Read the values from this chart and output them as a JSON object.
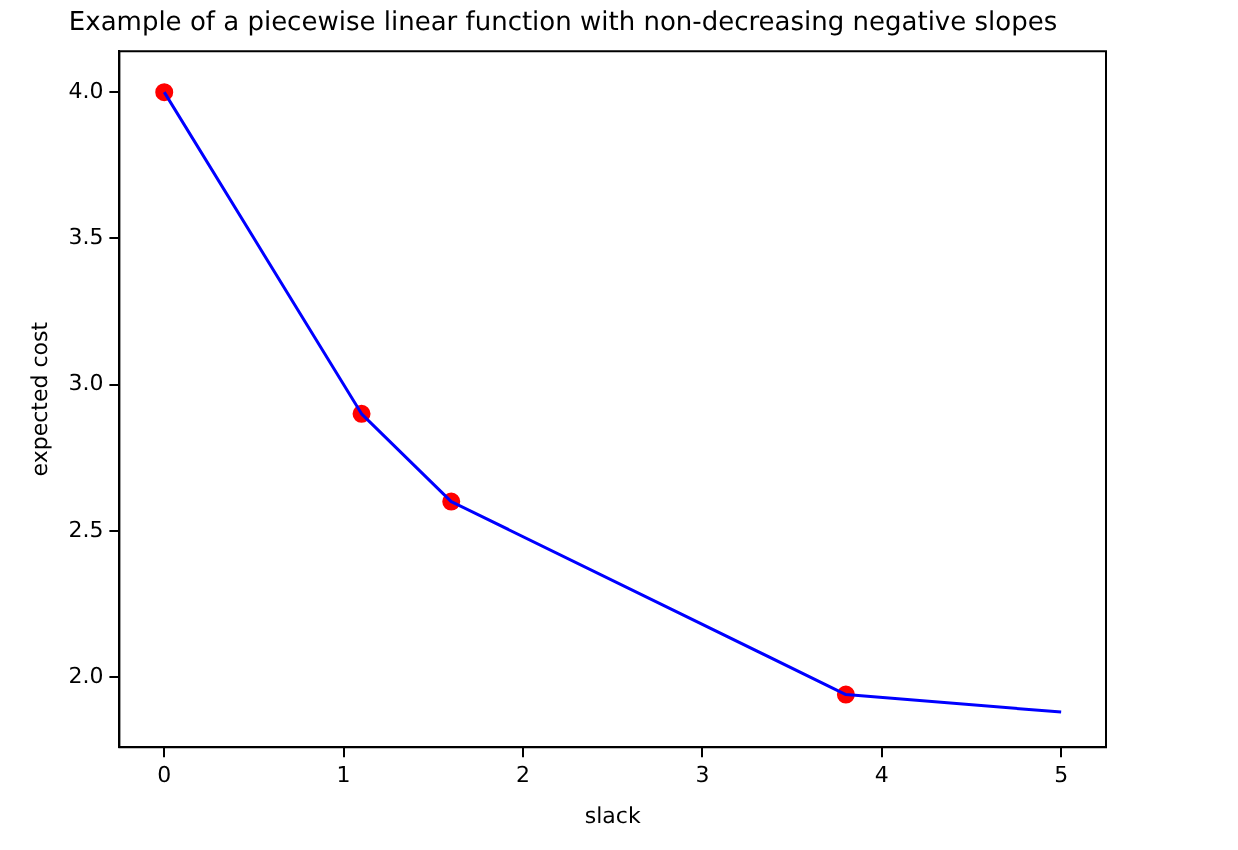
{
  "chart_data": {
    "type": "line",
    "title": "Example of a piecewise linear function with non-decreasing negative slopes",
    "xlabel": "slack",
    "ylabel": "expected cost",
    "series": [
      {
        "type": "line",
        "color": "#0000ff",
        "marker": "none",
        "x": [
          0,
          1.1,
          1.6,
          3.8,
          5
        ],
        "values": [
          4.0,
          2.9,
          2.6,
          1.94,
          1.88
        ]
      },
      {
        "type": "scatter",
        "color": "#ff0000",
        "marker": "circle",
        "x": [
          0,
          1.1,
          1.6,
          3.8
        ],
        "values": [
          4.0,
          2.9,
          2.6,
          1.94
        ]
      }
    ],
    "xlim": [
      -0.25,
      5.25
    ],
    "xticks": [
      0,
      1,
      2,
      3,
      4,
      5
    ],
    "ylim": [
      1.76,
      4.14
    ],
    "yticks": [
      {
        "value": 2,
        "label": "2.0"
      },
      {
        "value": 2.5,
        "label": "2.5"
      },
      {
        "value": 3,
        "label": "3.0"
      },
      {
        "value": 3.5,
        "label": "3.5"
      },
      {
        "value": 4,
        "label": "4.0"
      }
    ],
    "grid": false,
    "legend": false
  }
}
